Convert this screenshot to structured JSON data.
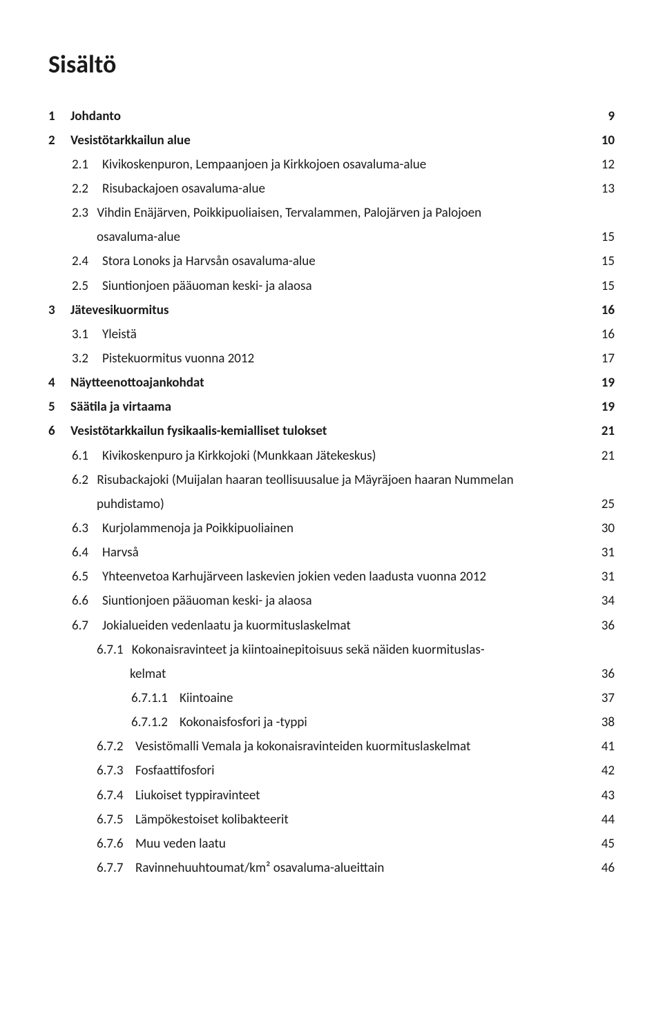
{
  "title": "Sisältö",
  "entries": [
    {
      "lvl": 1,
      "num": "1",
      "text": "Johdanto",
      "page": "9"
    },
    {
      "lvl": 1,
      "num": "2",
      "text": "Vesistötarkkailun alue",
      "page": "10"
    },
    {
      "lvl": 2,
      "num": "2.1",
      "text": "Kivikoskenpuron, Lempaanjoen ja Kirkkojoen osavaluma-alue",
      "page": "12"
    },
    {
      "lvl": 2,
      "num": "2.2",
      "text": "Risubackajoen osavaluma-alue",
      "page": "13"
    },
    {
      "lvl": 2,
      "num": "2.3",
      "text": "Vihdin Enäjärven, Poikkipuoliaisen, Tervalammen, Palojärven ja Palojoen",
      "cont": "osavaluma-alue",
      "page": "15"
    },
    {
      "lvl": 2,
      "num": "2.4",
      "text": "Stora Lonoks ja Harvsån osavaluma-alue",
      "page": "15"
    },
    {
      "lvl": 2,
      "num": "2.5",
      "text": "Siuntionjoen pääuoman keski- ja alaosa",
      "page": "15"
    },
    {
      "lvl": 1,
      "num": "3",
      "text": "Jätevesikuormitus",
      "page": "16"
    },
    {
      "lvl": 2,
      "num": "3.1",
      "text": "Yleistä",
      "page": "16"
    },
    {
      "lvl": 2,
      "num": "3.2",
      "text": "Pistekuormitus vuonna 2012",
      "page": "17"
    },
    {
      "lvl": 1,
      "num": "4",
      "text": "Näytteenottoajankohdat",
      "page": "19"
    },
    {
      "lvl": 1,
      "num": "5",
      "text": "Säätila ja virtaama",
      "page": "19"
    },
    {
      "lvl": 1,
      "num": "6",
      "text": "Vesistötarkkailun fysikaalis-kemialliset tulokset",
      "page": "21"
    },
    {
      "lvl": 2,
      "num": "6.1",
      "text": "Kivikoskenpuro ja Kirkkojoki (Munkkaan Jätekeskus)",
      "page": "21"
    },
    {
      "lvl": 2,
      "num": "6.2",
      "text": "Risubackajoki (Muijalan haaran teollisuusalue ja Mäyräjoen haaran Nummelan",
      "cont": "puhdistamo)",
      "page": "25"
    },
    {
      "lvl": 2,
      "num": "6.3",
      "text": "Kurjolammenoja ja Poikkipuoliainen",
      "page": "30"
    },
    {
      "lvl": 2,
      "num": "6.4",
      "text": "Harvså",
      "page": "31"
    },
    {
      "lvl": 2,
      "num": "6.5",
      "text": "Yhteenvetoa Karhujärveen laskevien jokien veden laadusta vuonna 2012",
      "page": "31"
    },
    {
      "lvl": 2,
      "num": "6.6",
      "text": "Siuntionjoen pääuoman keski- ja alaosa",
      "page": "34"
    },
    {
      "lvl": 2,
      "num": "6.7",
      "text": "Jokialueiden vedenlaatu ja kuormituslaskelmat",
      "page": "36"
    },
    {
      "lvl": 3,
      "num": "6.7.1",
      "text": "Kokonaisravinteet ja kiintoainepitoisuus sekä näiden kuormituslas-",
      "cont": "kelmat",
      "contIndent": true,
      "page": "36"
    },
    {
      "lvl": 4,
      "num": "6.7.1.1",
      "text": "Kiintoaine",
      "page": "37"
    },
    {
      "lvl": 4,
      "num": "6.7.1.2",
      "text": "Kokonaisfosfori ja -typpi",
      "page": "38"
    },
    {
      "lvl": 3,
      "num": "6.7.2",
      "text": "Vesistömalli Vemala ja kokonaisravinteiden kuormituslaskelmat",
      "page": "41"
    },
    {
      "lvl": 3,
      "num": "6.7.3",
      "text": "Fosfaattifosfori",
      "page": "42"
    },
    {
      "lvl": 3,
      "num": "6.7.4",
      "text": "Liukoiset typpiravinteet",
      "page": "43"
    },
    {
      "lvl": 3,
      "num": "6.7.5",
      "text": "Lämpökestoiset kolibakteerit",
      "page": "44"
    },
    {
      "lvl": 3,
      "num": "6.7.6",
      "text": "Muu veden laatu",
      "page": "45"
    },
    {
      "lvl": 3,
      "num": "6.7.7",
      "text": "Ravinnehuuhtoumat/km² osavaluma-alueittain",
      "page": "46"
    }
  ]
}
